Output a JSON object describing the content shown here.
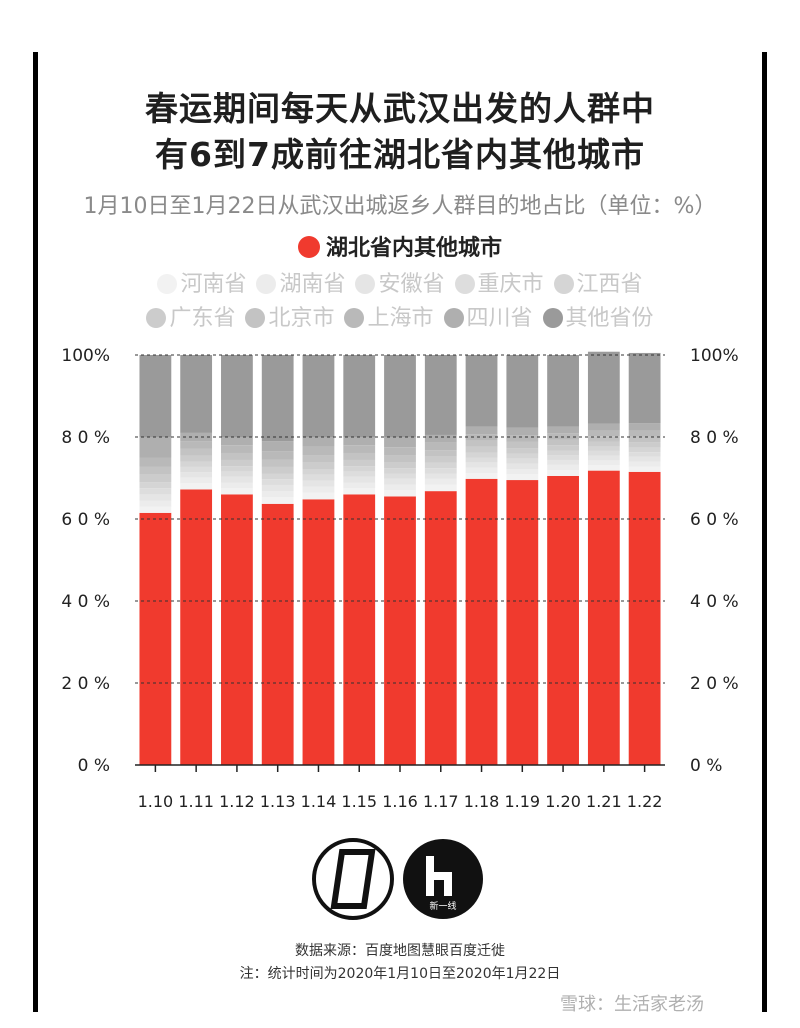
{
  "header": {
    "title_line1": "春运期间每天从武汉出发的人群中",
    "title_line2": "有6到7成前往湖北省内其他城市",
    "subtitle": "1月10日至1月22日从武汉出城返乡人群目的地占比（单位：%）"
  },
  "legend": {
    "main": {
      "label": "湖北省内其他城市",
      "color": "#f03a2e"
    },
    "others": [
      {
        "label": "河南省",
        "color": "#f2f2f2"
      },
      {
        "label": "湖南省",
        "color": "#ececec"
      },
      {
        "label": "安徽省",
        "color": "#e5e5e5"
      },
      {
        "label": "重庆市",
        "color": "#dddddd"
      },
      {
        "label": "江西省",
        "color": "#d5d5d5"
      },
      {
        "label": "广东省",
        "color": "#cccccc"
      },
      {
        "label": "北京市",
        "color": "#c3c3c3"
      },
      {
        "label": "上海市",
        "color": "#b9b9b9"
      },
      {
        "label": "四川省",
        "color": "#afafaf"
      },
      {
        "label": "其他省份",
        "color": "#9a9a9a"
      }
    ]
  },
  "chart_data": {
    "type": "bar",
    "stacked": true,
    "categories": [
      "1.10",
      "1.11",
      "1.12",
      "1.13",
      "1.14",
      "1.15",
      "1.16",
      "1.17",
      "1.18",
      "1.19",
      "1.20",
      "1.21",
      "1.22"
    ],
    "series": [
      {
        "name": "湖北省内其他城市",
        "values": [
          61.5,
          67.2,
          66.0,
          63.7,
          64.8,
          66.0,
          65.5,
          66.8,
          69.8,
          69.5,
          70.5,
          71.8,
          71.5
        ],
        "color": "#f03a2e"
      },
      {
        "name": "河南省",
        "values": [
          1.5,
          1.5,
          1.5,
          1.6,
          1.6,
          1.5,
          1.5,
          1.6,
          1.4,
          1.4,
          1.4,
          1.3,
          1.3
        ],
        "color": "#f2f2f2"
      },
      {
        "name": "湖南省",
        "values": [
          1.5,
          1.4,
          1.4,
          1.5,
          1.5,
          1.4,
          1.4,
          1.4,
          1.3,
          1.3,
          1.3,
          1.2,
          1.2
        ],
        "color": "#ececec"
      },
      {
        "name": "安徽省",
        "values": [
          1.5,
          1.3,
          1.4,
          1.5,
          1.5,
          1.4,
          1.4,
          1.3,
          1.3,
          1.3,
          1.2,
          1.2,
          1.2
        ],
        "color": "#e5e5e5"
      },
      {
        "name": "重庆市",
        "values": [
          1.5,
          1.3,
          1.3,
          1.4,
          1.4,
          1.3,
          1.3,
          1.3,
          1.2,
          1.2,
          1.2,
          1.1,
          1.1
        ],
        "color": "#dddddd"
      },
      {
        "name": "江西省",
        "values": [
          1.5,
          1.3,
          1.3,
          1.4,
          1.4,
          1.3,
          1.3,
          1.3,
          1.2,
          1.2,
          1.1,
          1.1,
          1.1
        ],
        "color": "#d5d5d5"
      },
      {
        "name": "广东省",
        "values": [
          1.8,
          1.5,
          1.5,
          1.6,
          1.6,
          1.5,
          1.5,
          1.5,
          1.4,
          1.4,
          1.3,
          1.2,
          1.3
        ],
        "color": "#cccccc"
      },
      {
        "name": "北京市",
        "values": [
          2.0,
          1.7,
          1.7,
          1.8,
          1.8,
          1.7,
          1.7,
          1.6,
          1.5,
          1.5,
          1.4,
          1.3,
          1.4
        ],
        "color": "#c3c3c3"
      },
      {
        "name": "上海市",
        "values": [
          2.2,
          1.8,
          1.9,
          2.0,
          2.0,
          1.9,
          1.9,
          1.8,
          1.6,
          1.6,
          1.5,
          1.4,
          1.5
        ],
        "color": "#b9b9b9"
      },
      {
        "name": "四川省",
        "values": [
          5.0,
          2.0,
          2.0,
          2.5,
          2.4,
          2.0,
          2.5,
          1.9,
          1.8,
          1.9,
          1.6,
          1.7,
          1.8
        ],
        "color": "#afafaf"
      },
      {
        "name": "其他省份",
        "values": [
          20.0,
          19.0,
          20.0,
          21.0,
          20.0,
          20.0,
          20.0,
          19.5,
          17.5,
          17.7,
          17.5,
          17.5,
          17.1
        ],
        "color": "#9a9a9a"
      }
    ],
    "yticks": [
      "0 %",
      "2 0 %",
      "4 0 %",
      "6 0 %",
      "8 0 %",
      "100%"
    ],
    "ylim": [
      0,
      100
    ],
    "grid": true
  },
  "footer": {
    "logo2_text": "新一线",
    "source": "数据来源：百度地图慧眼百度迁徙",
    "note": "注：统计时间为2020年1月10日至2020年1月22日",
    "watermark": "雪球：生活家老汤"
  }
}
